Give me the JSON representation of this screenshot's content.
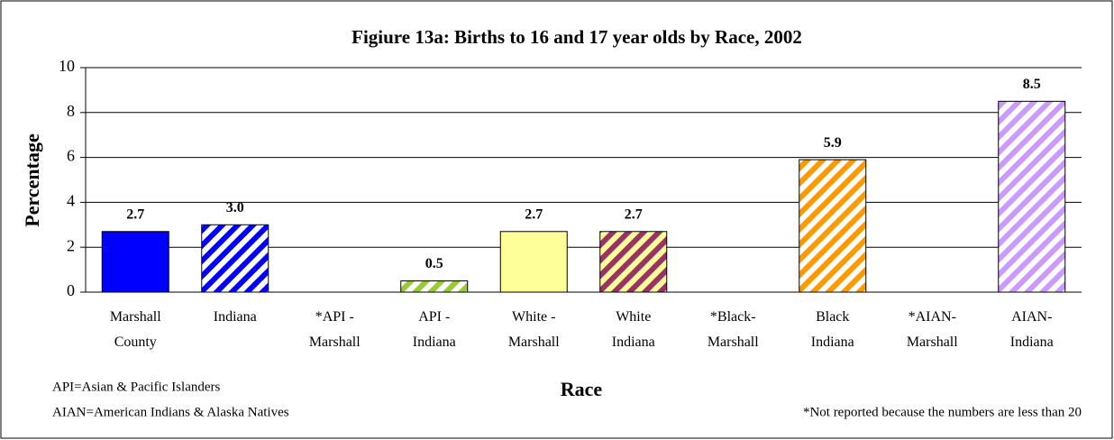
{
  "chart_data": {
    "type": "bar",
    "title": "Figiure 13a:  Births to 16 and 17 year olds by Race, 2002",
    "y_label": "Percentage",
    "x_label": "Race",
    "notes": [
      "API=Asian & Pacific Islanders",
      "AIAN=American Indians & Alaska Natives"
    ],
    "footnote": "*Not reported because the numbers are less than 20",
    "categories": [
      "Marshall\nCounty",
      "Indiana",
      "*API -\nMarshall",
      "API  -\nIndiana",
      "White -\nMarshall",
      "White\nIndiana",
      "*Black-\nMarshall",
      "Black\nIndiana",
      "*AIAN-\nMarshall",
      "AIAN-\nIndiana"
    ],
    "values": [
      2.7,
      3,
      null,
      0.5,
      2.7,
      2.7,
      null,
      5.9,
      null,
      8.5
    ],
    "value_labels": [
      "2.7",
      "3.0",
      null,
      "0.5",
      "2.7",
      "2.7",
      null,
      "5.9",
      null,
      "8.5"
    ],
    "colors": [
      "#0000ff",
      "#0000ff",
      null,
      "#99cc33",
      "#ffff99",
      "#993366",
      null,
      "#ff9900",
      null,
      "#cc99ff"
    ],
    "backgrounds": [
      null,
      "#ffffff",
      null,
      "#ffffff",
      null,
      "#ffff99",
      null,
      "#ffffff",
      null,
      "#ffffff"
    ],
    "patterns": [
      "solid",
      "stripe",
      null,
      "stripe",
      "solid",
      "stripe",
      null,
      "stripe",
      null,
      "stripe"
    ],
    "ylim": [
      0,
      10
    ],
    "yticks": [
      0,
      2,
      4,
      6,
      8,
      10
    ],
    "grid": true
  }
}
